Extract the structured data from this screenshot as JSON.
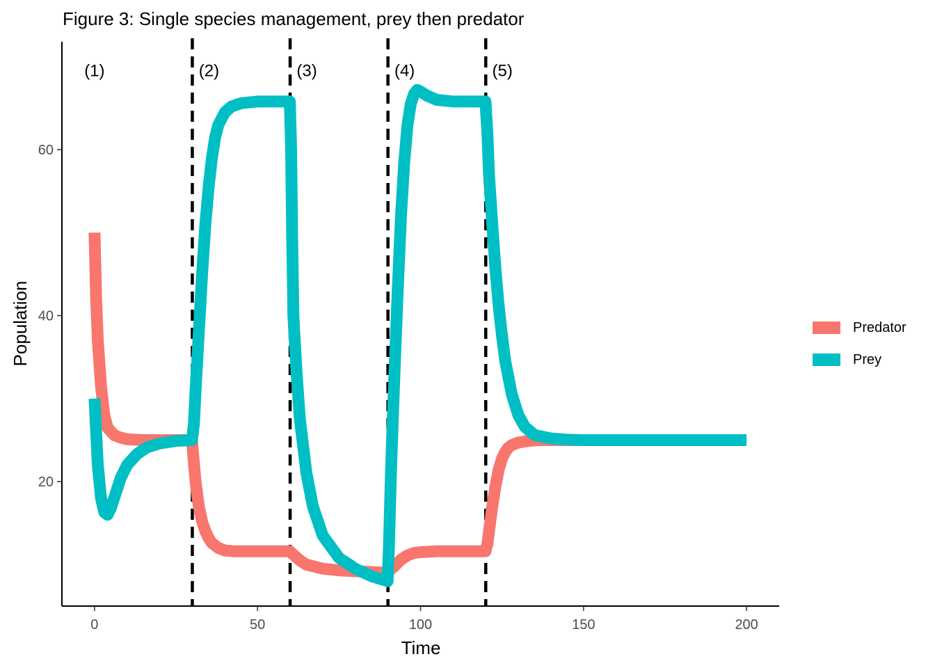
{
  "chart_data": {
    "type": "line",
    "title": "Figure 3: Single species management, prey then predator",
    "xlabel": "Time",
    "ylabel": "Population",
    "xlim": [
      -10,
      210
    ],
    "ylim": [
      5,
      73
    ],
    "xticks": [
      0,
      50,
      100,
      150,
      200
    ],
    "yticks": [
      20,
      40,
      60
    ],
    "grid": false,
    "legend_position": "right",
    "vlines": [
      30,
      60,
      90,
      120
    ],
    "annotations": [
      {
        "label": "(1)",
        "x": 0,
        "y": 69.5
      },
      {
        "label": "(2)",
        "x": 30,
        "y": 69.5
      },
      {
        "label": "(3)",
        "x": 60,
        "y": 69.5
      },
      {
        "label": "(4)",
        "x": 90,
        "y": 69.5
      },
      {
        "label": "(5)",
        "x": 120,
        "y": 69.5
      }
    ],
    "series": [
      {
        "name": "Predator",
        "color": "#F8766D",
        "x": [
          0,
          0.5,
          1,
          2,
          3,
          4,
          6,
          8,
          10,
          15,
          20,
          25,
          29.9,
          30.2,
          31,
          32,
          33,
          34,
          35,
          36,
          38,
          40,
          43,
          47,
          50,
          55,
          59.9,
          61,
          63,
          65,
          70,
          75,
          80,
          85,
          89.9,
          90.5,
          92,
          94,
          96,
          98,
          100,
          105,
          110,
          115,
          119.9,
          120.5,
          121,
          122,
          123,
          124,
          125,
          126,
          127,
          128,
          130,
          133,
          136,
          140,
          145,
          150,
          160,
          170,
          180,
          190,
          200
        ],
        "y": [
          50,
          42,
          37,
          31.5,
          28,
          26.5,
          25.6,
          25.3,
          25.1,
          25.0,
          25.0,
          25.0,
          25.0,
          23.5,
          20,
          17,
          15.2,
          14,
          13.2,
          12.6,
          12,
          11.7,
          11.6,
          11.6,
          11.6,
          11.6,
          11.6,
          11.2,
          10.5,
          10,
          9.5,
          9.3,
          9.2,
          9.1,
          9.0,
          9.3,
          9.8,
          10.6,
          11.1,
          11.4,
          11.5,
          11.6,
          11.6,
          11.6,
          11.6,
          12.5,
          14,
          17,
          19.5,
          21.5,
          22.8,
          23.6,
          24.1,
          24.4,
          24.7,
          24.9,
          25.0,
          25.0,
          25.0,
          25.0,
          25.0,
          25.0,
          25.0,
          25.0,
          25.0
        ]
      },
      {
        "name": "Prey",
        "color": "#00BFC4",
        "x": [
          0,
          0.5,
          1,
          2,
          3,
          4,
          5,
          6,
          8,
          10,
          13,
          16,
          20,
          25,
          29.9,
          30.5,
          31,
          32,
          33,
          34,
          35,
          36,
          37,
          38,
          40,
          42,
          45,
          50,
          55,
          59.9,
          60.3,
          60.6,
          61,
          62,
          63,
          65,
          67,
          70,
          75,
          80,
          85,
          89.9,
          90.3,
          91,
          92,
          93,
          94,
          95,
          96,
          97,
          98,
          99,
          100,
          102,
          105,
          110,
          115,
          119.9,
          120.5,
          121,
          122,
          123,
          124,
          125,
          126,
          128,
          130,
          132,
          135,
          140,
          145,
          150,
          160,
          170,
          180,
          190,
          200
        ],
        "y": [
          30,
          26,
          22,
          18,
          16.3,
          16,
          16.8,
          18,
          20.4,
          22,
          23.3,
          24.1,
          24.6,
          24.9,
          25.0,
          27,
          31,
          38,
          45,
          51,
          55.5,
          59,
          61.5,
          63,
          64.5,
          65.2,
          65.6,
          65.8,
          65.8,
          65.8,
          60,
          50,
          40,
          33,
          27.5,
          21,
          17,
          13.5,
          10.8,
          9.5,
          8.6,
          8.0,
          12,
          22,
          33,
          43,
          52,
          58.5,
          63,
          65.5,
          66.7,
          67.2,
          67,
          66.5,
          66,
          65.8,
          65.8,
          65.8,
          62,
          57,
          51,
          45.5,
          41,
          37.5,
          34.5,
          30.5,
          28,
          26.6,
          25.6,
          25.2,
          25.05,
          25.0,
          25.0,
          25.0,
          25.0,
          25.0,
          25.0
        ]
      }
    ]
  }
}
